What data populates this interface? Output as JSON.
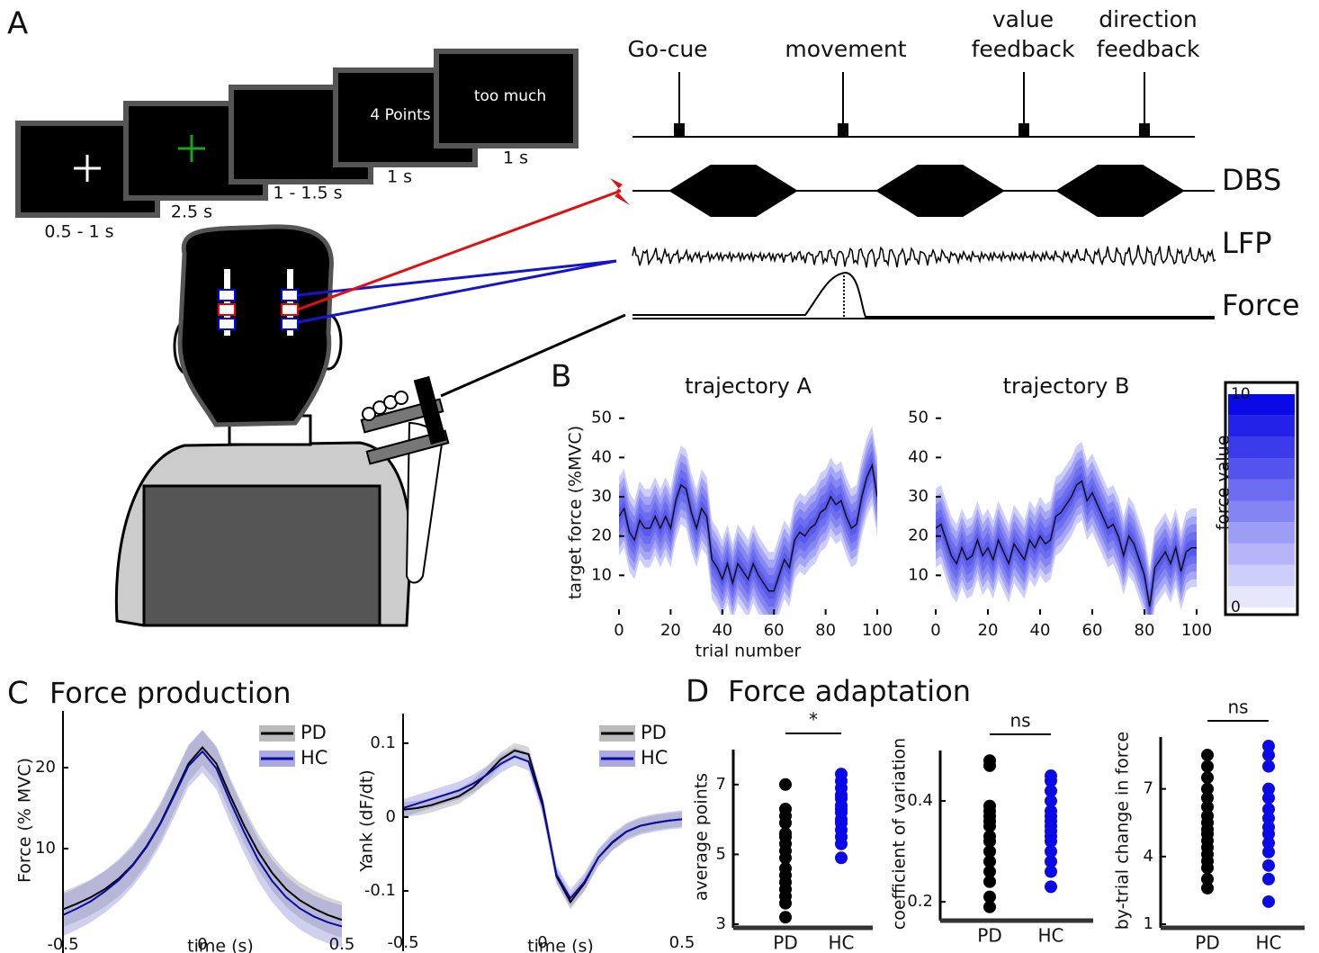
{
  "panels": [
    {
      "label": "A"
    },
    {
      "label": "B"
    },
    {
      "label": "C",
      "title": "Force production"
    },
    {
      "label": "D",
      "title": "Force adaptation"
    }
  ],
  "task": {
    "screen_texts": [
      "4 Points",
      "too much"
    ],
    "durations": [
      "0.5 - 1 s",
      "2.5 s",
      "1 - 1.5 s",
      "1 s",
      "1 s"
    ],
    "events": [
      {
        "lines": [
          "Go-cue"
        ]
      },
      {
        "lines": [
          "movement"
        ]
      },
      {
        "lines": [
          "value",
          "feedback"
        ]
      },
      {
        "lines": [
          "direction",
          "feedback"
        ]
      }
    ],
    "signals": [
      "DBS",
      "LFP",
      "Force"
    ]
  },
  "chart_data": [
    {
      "type": "line",
      "title": "trajectory A",
      "x_label": "trial number",
      "y_label": "target force (%MVC)",
      "x": [
        0,
        2,
        4,
        6,
        8,
        10,
        12,
        14,
        16,
        18,
        20,
        22,
        24,
        26,
        28,
        30,
        32,
        34,
        36,
        38,
        40,
        42,
        44,
        46,
        48,
        50,
        52,
        54,
        56,
        58,
        60,
        62,
        64,
        66,
        68,
        70,
        72,
        74,
        76,
        78,
        80,
        82,
        84,
        86,
        88,
        90,
        92,
        94,
        96,
        98,
        100
      ],
      "values": [
        25,
        27,
        21,
        19,
        24,
        22,
        22,
        25,
        22,
        25,
        22,
        29,
        33,
        32,
        26,
        22,
        27,
        25,
        14,
        12,
        9,
        13,
        8,
        13,
        11,
        9,
        13,
        10,
        8,
        6,
        6,
        10,
        14,
        12,
        19,
        21,
        20,
        22,
        23,
        26,
        27,
        30,
        28,
        29,
        25,
        22,
        23,
        30,
        35,
        38,
        30
      ],
      "band_halfwidth": 10,
      "color": "#0a0ae6",
      "xlim": [
        0,
        100
      ],
      "xticks": [
        0,
        20,
        40,
        60,
        80,
        100
      ],
      "ylim": [
        0,
        52
      ],
      "yticks": [
        10,
        20,
        30,
        40,
        50
      ]
    },
    {
      "type": "line",
      "title": "trajectory B",
      "x": [
        0,
        2,
        4,
        6,
        8,
        10,
        12,
        14,
        16,
        18,
        20,
        22,
        24,
        26,
        28,
        30,
        32,
        34,
        36,
        38,
        40,
        42,
        44,
        46,
        48,
        50,
        52,
        54,
        56,
        58,
        60,
        62,
        64,
        66,
        68,
        70,
        72,
        74,
        76,
        78,
        80,
        82,
        84,
        86,
        88,
        90,
        92,
        94,
        96,
        98,
        100
      ],
      "values": [
        22,
        23,
        19,
        15,
        13,
        17,
        14,
        15,
        19,
        15,
        17,
        14,
        19,
        16,
        13,
        18,
        16,
        14,
        19,
        17,
        20,
        18,
        19,
        25,
        26,
        28,
        30,
        33,
        34,
        29,
        31,
        28,
        25,
        22,
        23,
        20,
        15,
        20,
        18,
        14,
        10,
        2,
        12,
        14,
        16,
        13,
        17,
        11,
        16,
        17,
        17
      ],
      "band_halfwidth": 10,
      "color": "#0a0ae6",
      "xlim": [
        0,
        100
      ],
      "xticks": [
        0,
        20,
        40,
        60,
        80,
        100
      ],
      "ylim": [
        0,
        52
      ],
      "yticks": [
        10,
        20,
        30,
        40,
        50
      ]
    },
    {
      "type": "colorbar",
      "y_label": "force value",
      "color": "#0a0ae6",
      "ylim": [
        0,
        10
      ],
      "yticks": [
        0,
        10
      ]
    },
    {
      "type": "line",
      "y_label": "Force (% MVC)",
      "x_label": "time (s)",
      "x": [
        -0.5,
        -0.45,
        -0.4,
        -0.35,
        -0.3,
        -0.25,
        -0.2,
        -0.15,
        -0.1,
        -0.05,
        0,
        0.05,
        0.1,
        0.15,
        0.2,
        0.25,
        0.3,
        0.35,
        0.4,
        0.45,
        0.5
      ],
      "series": [
        {
          "name": "PD",
          "color": "#000000",
          "band_halfwidth": 2.2,
          "values": [
            2.5,
            3.2,
            4,
            5,
            6.3,
            8,
            10.3,
            13.2,
            16.8,
            20.5,
            22.5,
            20.5,
            16.5,
            12.8,
            9.6,
            7,
            5,
            3.6,
            2.6,
            1.8,
            1.2
          ]
        },
        {
          "name": "HC",
          "color": "#0a0aa8",
          "band_halfwidth": 2.6,
          "values": [
            1.8,
            2.6,
            3.5,
            4.7,
            6.1,
            7.9,
            10.2,
            13.1,
            16.6,
            20.2,
            22,
            19.9,
            15.8,
            12,
            8.6,
            6,
            4,
            2.6,
            1.6,
            0.9,
            0.4
          ]
        }
      ],
      "legend": "upper right",
      "xlim": [
        -0.5,
        0.5
      ],
      "xticks": [
        -0.5,
        0,
        0.5
      ],
      "ylim": [
        0,
        27
      ],
      "yticks": [
        10,
        20
      ]
    },
    {
      "type": "line",
      "y_label": "Yank (dF/dt)",
      "x_label": "time (s)",
      "x": [
        -0.5,
        -0.45,
        -0.4,
        -0.35,
        -0.3,
        -0.25,
        -0.2,
        -0.15,
        -0.1,
        -0.05,
        0,
        0.05,
        0.1,
        0.15,
        0.2,
        0.25,
        0.3,
        0.35,
        0.4,
        0.45,
        0.5
      ],
      "series": [
        {
          "name": "PD",
          "color": "#000000",
          "band_halfwidth": 0.01,
          "values": [
            0.01,
            0.012,
            0.016,
            0.022,
            0.028,
            0.04,
            0.058,
            0.078,
            0.09,
            0.085,
            0.02,
            -0.08,
            -0.115,
            -0.09,
            -0.055,
            -0.035,
            -0.02,
            -0.012,
            -0.008,
            -0.005,
            -0.003
          ]
        },
        {
          "name": "HC",
          "color": "#0a0aa8",
          "band_halfwidth": 0.012,
          "values": [
            0.012,
            0.018,
            0.024,
            0.03,
            0.036,
            0.045,
            0.057,
            0.072,
            0.082,
            0.075,
            0.015,
            -0.078,
            -0.11,
            -0.088,
            -0.055,
            -0.034,
            -0.02,
            -0.012,
            -0.008,
            -0.005,
            -0.003
          ]
        }
      ],
      "legend": "upper right",
      "xlim": [
        -0.5,
        0.5
      ],
      "xticks": [
        -0.5,
        0,
        0.5
      ],
      "ylim": [
        -0.15,
        0.14
      ],
      "yticks": [
        -0.1,
        0,
        0.1
      ]
    },
    {
      "type": "strip",
      "y_label": "average points",
      "annotation": "*",
      "categories": [
        "PD",
        "HC"
      ],
      "colors": [
        "#000000",
        "#0a0ae6"
      ],
      "values": [
        [
          7,
          6.3,
          6.1,
          5.9,
          5.6,
          5.5,
          5.3,
          5.1,
          4.9,
          4.6,
          4.4,
          4.2,
          4,
          3.8,
          3.6,
          3.2
        ],
        [
          7.3,
          7.1,
          6.9,
          6.7,
          6.6,
          6.4,
          6.3,
          6.2,
          6,
          5.9,
          5.7,
          5.5,
          5.3,
          4.9
        ]
      ],
      "ylim": [
        3,
        8
      ],
      "yticks": [
        3,
        5,
        7
      ]
    },
    {
      "type": "strip",
      "y_label": "coefficient of variation",
      "annotation": "ns",
      "categories": [
        "PD",
        "HC"
      ],
      "colors": [
        "#000000",
        "#0a0ae6"
      ],
      "values": [
        [
          0.48,
          0.47,
          0.39,
          0.38,
          0.37,
          0.36,
          0.35,
          0.33,
          0.32,
          0.3,
          0.28,
          0.26,
          0.24,
          0.21,
          0.19
        ],
        [
          0.45,
          0.44,
          0.42,
          0.4,
          0.38,
          0.37,
          0.36,
          0.35,
          0.34,
          0.33,
          0.32,
          0.3,
          0.28,
          0.26,
          0.23
        ]
      ],
      "ylim": [
        0.17,
        0.5
      ],
      "yticks": [
        0.2,
        0.4
      ]
    },
    {
      "type": "strip",
      "y_label": "by-trial change in force",
      "annotation": "ns",
      "categories": [
        "PD",
        "HC"
      ],
      "colors": [
        "#000000",
        "#0a0ae6"
      ],
      "values": [
        [
          8.5,
          8,
          7.5,
          7,
          6.6,
          6.2,
          5.8,
          5.5,
          5.2,
          5,
          4.7,
          4.4,
          4.1,
          3.8,
          3.5,
          3,
          2.6
        ],
        [
          8.9,
          8.5,
          8,
          7,
          6.6,
          6.1,
          5.7,
          5.3,
          5,
          4.6,
          4.2,
          3.6,
          3,
          2
        ]
      ],
      "ylim": [
        1,
        9.3
      ],
      "yticks": [
        1,
        4,
        7
      ]
    }
  ]
}
